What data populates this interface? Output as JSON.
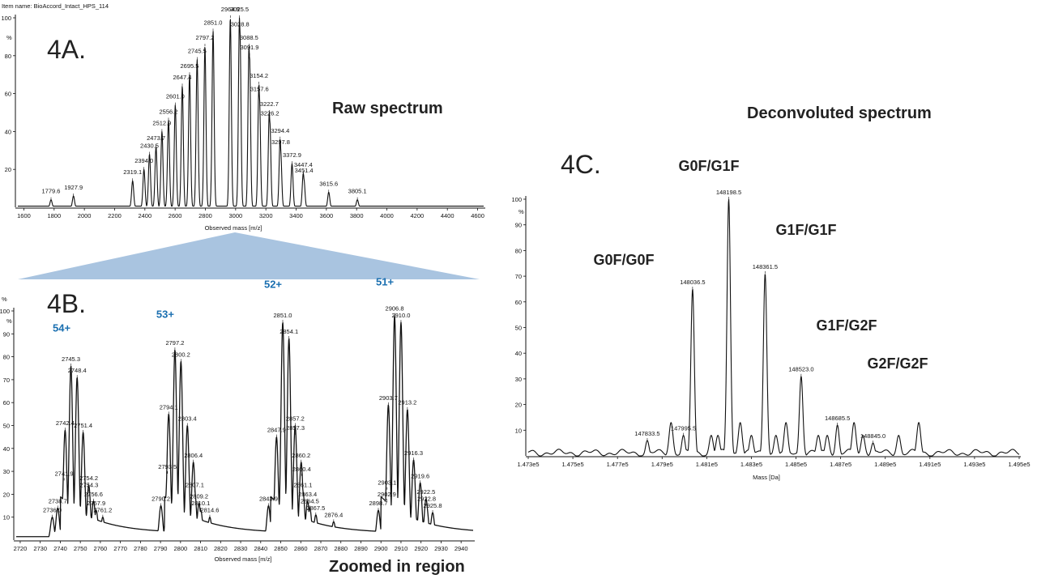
{
  "chart_data": [
    {
      "id": "4A",
      "type": "line",
      "panel_label": "4A.",
      "title": "Raw spectrum",
      "header_text": "Item name: BioAccord_Intact_HPS_114",
      "xlabel": "Observed mass [m/z]",
      "ylabel": "%",
      "xlim": [
        1560,
        4640
      ],
      "ylim": [
        0,
        100
      ],
      "xticks": [
        1600,
        1800,
        2000,
        2200,
        2400,
        2600,
        2800,
        3000,
        3200,
        3400,
        3600,
        3800,
        4000,
        4200,
        4400,
        4600
      ],
      "yticks": [
        20,
        40,
        60,
        80,
        100
      ],
      "peaks": [
        {
          "x": 1779.6,
          "y": 4
        },
        {
          "x": 1927.9,
          "y": 6
        },
        {
          "x": 2319.1,
          "y": 14
        },
        {
          "x": 2394.0,
          "y": 20
        },
        {
          "x": 2430.5,
          "y": 28
        },
        {
          "x": 2473.7,
          "y": 32
        },
        {
          "x": 2512.9,
          "y": 40
        },
        {
          "x": 2556.2,
          "y": 46
        },
        {
          "x": 2601.0,
          "y": 54
        },
        {
          "x": 2647.4,
          "y": 64
        },
        {
          "x": 2695.5,
          "y": 70
        },
        {
          "x": 2745.5,
          "y": 78
        },
        {
          "x": 2797.2,
          "y": 85
        },
        {
          "x": 2851.0,
          "y": 93
        },
        {
          "x": 2964.9,
          "y": 100
        },
        {
          "x": 3025.5,
          "y": 100
        },
        {
          "x": 3028.8,
          "y": 92
        },
        {
          "x": 3088.5,
          "y": 85
        },
        {
          "x": 3091.9,
          "y": 80
        },
        {
          "x": 3154.2,
          "y": 65
        },
        {
          "x": 3157.6,
          "y": 58
        },
        {
          "x": 3222.7,
          "y": 50
        },
        {
          "x": 3226.2,
          "y": 45
        },
        {
          "x": 3294.4,
          "y": 36
        },
        {
          "x": 3297.8,
          "y": 30
        },
        {
          "x": 3372.9,
          "y": 23
        },
        {
          "x": 3447.4,
          "y": 18
        },
        {
          "x": 3451.4,
          "y": 15
        },
        {
          "x": 3615.6,
          "y": 8
        },
        {
          "x": 3805.1,
          "y": 4
        }
      ]
    },
    {
      "id": "4B",
      "type": "line",
      "panel_label": "4B.",
      "title": "Zoomed in region",
      "header_text": "%",
      "xlabel": "Observed mass [m/z]",
      "ylabel": "%",
      "xlim": [
        2718,
        2946
      ],
      "ylim": [
        0,
        100
      ],
      "xticks": [
        2720,
        2730,
        2740,
        2750,
        2760,
        2770,
        2780,
        2790,
        2800,
        2810,
        2820,
        2830,
        2840,
        2850,
        2860,
        2870,
        2880,
        2890,
        2900,
        2910,
        2920,
        2930,
        2940
      ],
      "yticks": [
        10,
        20,
        30,
        40,
        50,
        60,
        70,
        80,
        90,
        100
      ],
      "charge_states": [
        {
          "label": "54+",
          "x": 2745.5,
          "y": 84
        },
        {
          "label": "53+",
          "x": 2797.2,
          "y": 90
        },
        {
          "label": "52+",
          "x": 2851.0,
          "y": 103
        },
        {
          "label": "51+",
          "x": 2906.8,
          "y": 104
        }
      ],
      "peaks": [
        {
          "x": 2736.0,
          "y": 10
        },
        {
          "x": 2738.7,
          "y": 14
        },
        {
          "x": 2741.9,
          "y": 26
        },
        {
          "x": 2742.4,
          "y": 48
        },
        {
          "x": 2745.3,
          "y": 76
        },
        {
          "x": 2748.4,
          "y": 71
        },
        {
          "x": 2751.4,
          "y": 47
        },
        {
          "x": 2754.2,
          "y": 24
        },
        {
          "x": 2754.3,
          "y": 21
        },
        {
          "x": 2756.6,
          "y": 17
        },
        {
          "x": 2757.9,
          "y": 13
        },
        {
          "x": 2761.2,
          "y": 10
        },
        {
          "x": 2790.2,
          "y": 15
        },
        {
          "x": 2793.5,
          "y": 29
        },
        {
          "x": 2794.1,
          "y": 55
        },
        {
          "x": 2797.2,
          "y": 83
        },
        {
          "x": 2800.2,
          "y": 78
        },
        {
          "x": 2803.4,
          "y": 50
        },
        {
          "x": 2806.4,
          "y": 34
        },
        {
          "x": 2807.1,
          "y": 21
        },
        {
          "x": 2809.2,
          "y": 16
        },
        {
          "x": 2810.1,
          "y": 13
        },
        {
          "x": 2814.6,
          "y": 10
        },
        {
          "x": 2843.9,
          "y": 15
        },
        {
          "x": 2847.9,
          "y": 45
        },
        {
          "x": 2851.0,
          "y": 95
        },
        {
          "x": 2854.1,
          "y": 88
        },
        {
          "x": 2857.2,
          "y": 50
        },
        {
          "x": 2857.3,
          "y": 46
        },
        {
          "x": 2860.2,
          "y": 34
        },
        {
          "x": 2860.4,
          "y": 28
        },
        {
          "x": 2861.1,
          "y": 21
        },
        {
          "x": 2863.4,
          "y": 17
        },
        {
          "x": 2864.5,
          "y": 14
        },
        {
          "x": 2867.5,
          "y": 11
        },
        {
          "x": 2876.4,
          "y": 8
        },
        {
          "x": 2898.7,
          "y": 13
        },
        {
          "x": 2902.9,
          "y": 17
        },
        {
          "x": 2903.1,
          "y": 22
        },
        {
          "x": 2903.7,
          "y": 59
        },
        {
          "x": 2906.8,
          "y": 98
        },
        {
          "x": 2910.0,
          "y": 95
        },
        {
          "x": 2913.2,
          "y": 57
        },
        {
          "x": 2916.3,
          "y": 35
        },
        {
          "x": 2919.6,
          "y": 25
        },
        {
          "x": 2922.5,
          "y": 18
        },
        {
          "x": 2922.8,
          "y": 15
        },
        {
          "x": 2925.8,
          "y": 12
        }
      ]
    },
    {
      "id": "4C",
      "type": "line",
      "panel_label": "4C.",
      "title": "Deconvoluted spectrum",
      "xlabel": "Mass [Da]",
      "ylabel": "%",
      "xlim": [
        147300,
        149500
      ],
      "ylim": [
        0,
        100
      ],
      "xticks": [
        147300,
        147500,
        147700,
        147900,
        148100,
        148300,
        148500,
        148700,
        148900,
        149100,
        149300,
        149500
      ],
      "xtick_labels": [
        "1.473e5",
        "1.475e5",
        "1.477e5",
        "1.479e5",
        "1.481e5",
        "1.483e5",
        "1.485e5",
        "1.487e5",
        "1.489e5",
        "1.491e5",
        "1.493e5",
        "1.495e5"
      ],
      "yticks": [
        10,
        20,
        30,
        40,
        50,
        60,
        70,
        80,
        90,
        100
      ],
      "glycoforms": [
        {
          "label": "G0F/G0F",
          "x": 148036.5
        },
        {
          "label": "G0F/G1F",
          "x": 148198.5
        },
        {
          "label": "G1F/G1F",
          "x": 148361.5
        },
        {
          "label": "G1F/G2F",
          "x": 148523.0
        },
        {
          "label": "G2F/G2F",
          "x": 148685.5
        }
      ],
      "peaks": [
        {
          "x": 147833.5,
          "y": 6,
          "label": "147833.5"
        },
        {
          "x": 147995.5,
          "y": 8,
          "label": "147995.5"
        },
        {
          "x": 148036.5,
          "y": 65,
          "label": "148036.5"
        },
        {
          "x": 148198.5,
          "y": 100,
          "label": "148198.5"
        },
        {
          "x": 148361.5,
          "y": 71,
          "label": "148361.5"
        },
        {
          "x": 148523.0,
          "y": 31,
          "label": "148523.0"
        },
        {
          "x": 148685.5,
          "y": 12,
          "label": "148685.5"
        },
        {
          "x": 148845.0,
          "y": 5,
          "label": "148845.0"
        }
      ]
    }
  ]
}
